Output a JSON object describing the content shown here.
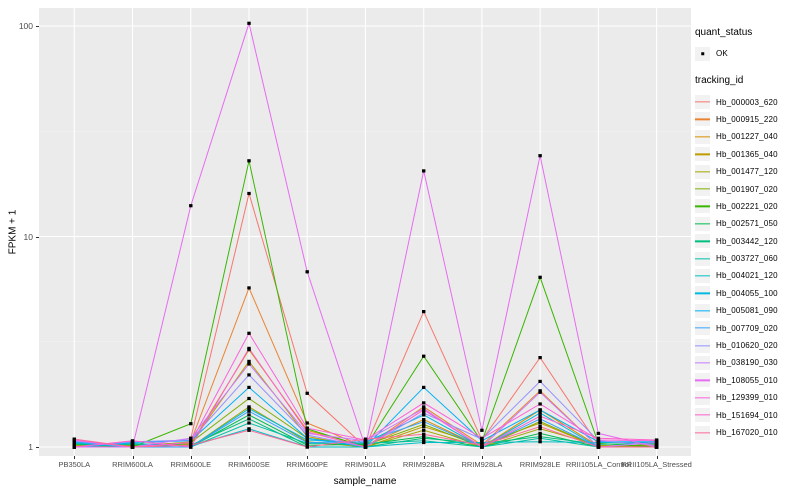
{
  "figure": {
    "background": "#FFFFFF",
    "panel_background": "#EBEBEB",
    "gridline_color": "#FFFFFF",
    "tick_text_color": "#4D4D4D",
    "point_color": "#000000"
  },
  "chart_data": {
    "type": "line",
    "title": "",
    "xlabel": "sample_name",
    "ylabel": "FPKM + 1",
    "y_scale": "log10",
    "ylim": [
      0.93,
      110
    ],
    "grid": "on",
    "y_ticks": [
      {
        "label": "1",
        "value": 1
      },
      {
        "label": "10",
        "value": 10
      },
      {
        "label": "100",
        "value": 100
      }
    ],
    "y_minor_ticks": [
      3.1623,
      31.623
    ],
    "categories": [
      "PB350LA",
      "RRIM600LA",
      "RRIM600LE",
      "RRIM600SE",
      "RRIM600PE",
      "RRIM901LA",
      "RRIM928BA",
      "RRIM928LA",
      "RRIM928LE",
      "RRII105LA_Control",
      "RRII105LA_Stressed"
    ],
    "legend": {
      "position": "right",
      "quant_status_title": "quant_status",
      "quant_status_items": [
        {
          "label": "OK",
          "symbol": "point-icon",
          "color": "#000000"
        }
      ],
      "tracking_id_title": "tracking_id"
    },
    "series": [
      {
        "name": "Hb_000003_620",
        "color": "#F8766D",
        "values": [
          1.0,
          1.0,
          1.1,
          16.0,
          1.8,
          1.0,
          4.4,
          1.08,
          2.66,
          1.02,
          1.0
        ]
      },
      {
        "name": "Hb_000915_220",
        "color": "#EA8331",
        "values": [
          1.0,
          1.0,
          1.06,
          5.7,
          1.3,
          1.0,
          1.55,
          1.02,
          1.85,
          1.0,
          1.01
        ]
      },
      {
        "name": "Hb_001227_040",
        "color": "#D89000",
        "values": [
          1.01,
          1.0,
          1.03,
          2.9,
          1.2,
          1.01,
          1.35,
          1.0,
          1.5,
          1.01,
          1.0
        ]
      },
      {
        "name": "Hb_001365_040",
        "color": "#C09B00",
        "values": [
          1.0,
          1.01,
          1.04,
          2.55,
          1.12,
          1.0,
          1.25,
          1.03,
          1.3,
          1.0,
          1.02
        ]
      },
      {
        "name": "Hb_001477_120",
        "color": "#A3A500",
        "values": [
          1.02,
          1.0,
          1.0,
          1.55,
          1.06,
          1.0,
          1.2,
          1.0,
          1.22,
          1.02,
          1.0
        ]
      },
      {
        "name": "Hb_001907_020",
        "color": "#7CAE00",
        "values": [
          1.0,
          1.02,
          1.05,
          1.7,
          1.1,
          1.02,
          1.28,
          1.0,
          1.32,
          1.0,
          1.03
        ]
      },
      {
        "name": "Hb_002221_020",
        "color": "#39B600",
        "values": [
          1.0,
          1.0,
          1.29,
          22.9,
          1.22,
          1.0,
          2.7,
          1.06,
          6.4,
          1.04,
          1.0
        ]
      },
      {
        "name": "Hb_002571_050",
        "color": "#00BB4E",
        "values": [
          1.03,
          1.0,
          1.0,
          1.42,
          1.02,
          1.03,
          1.12,
          1.0,
          1.16,
          1.0,
          1.0
        ]
      },
      {
        "name": "Hb_003442_120",
        "color": "#00BF7D",
        "values": [
          1.0,
          1.03,
          1.02,
          1.36,
          1.0,
          1.0,
          1.1,
          1.04,
          1.12,
          1.03,
          1.04
        ]
      },
      {
        "name": "Hb_003727_060",
        "color": "#00C1A3",
        "values": [
          1.04,
          1.0,
          1.0,
          1.3,
          1.04,
          1.04,
          1.07,
          1.0,
          1.1,
          1.0,
          1.0
        ]
      },
      {
        "name": "Hb_004021_120",
        "color": "#00BFC4",
        "values": [
          1.0,
          1.04,
          1.01,
          1.22,
          1.0,
          1.0,
          1.05,
          1.05,
          1.06,
          1.05,
          1.05
        ]
      },
      {
        "name": "Hb_004055_100",
        "color": "#00BAE0",
        "values": [
          1.05,
          1.0,
          1.0,
          1.52,
          1.08,
          1.05,
          1.42,
          1.0,
          1.45,
          1.0,
          1.0
        ]
      },
      {
        "name": "Hb_005081_090",
        "color": "#00B0F6",
        "values": [
          1.0,
          1.05,
          1.07,
          1.92,
          1.1,
          1.0,
          1.92,
          1.07,
          1.5,
          1.06,
          1.06
        ]
      },
      {
        "name": "Hb_007709_020",
        "color": "#35A2FF",
        "values": [
          1.06,
          1.0,
          1.0,
          1.48,
          1.05,
          1.06,
          1.32,
          1.0,
          1.36,
          1.0,
          1.0
        ]
      },
      {
        "name": "Hb_010620_020",
        "color": "#9590FF",
        "values": [
          1.0,
          1.06,
          1.08,
          2.2,
          1.14,
          1.0,
          1.45,
          1.09,
          2.05,
          1.07,
          1.02
        ]
      },
      {
        "name": "Hb_038190_030",
        "color": "#C77CFF",
        "values": [
          1.07,
          1.0,
          1.1,
          2.48,
          1.16,
          1.07,
          1.52,
          1.0,
          1.82,
          1.0,
          1.05
        ]
      },
      {
        "name": "Hb_108055_010",
        "color": "#E76BF3",
        "values": [
          1.0,
          1.0,
          14.0,
          103.0,
          6.8,
          1.0,
          20.5,
          1.2,
          24.2,
          1.16,
          1.0
        ]
      },
      {
        "name": "Hb_129399_010",
        "color": "#FA62DB",
        "values": [
          1.08,
          1.0,
          1.05,
          3.47,
          1.23,
          1.08,
          1.62,
          1.1,
          1.6,
          1.08,
          1.07
        ]
      },
      {
        "name": "Hb_151694_010",
        "color": "#FF61CC",
        "values": [
          1.0,
          1.07,
          1.0,
          2.94,
          1.18,
          1.0,
          1.5,
          1.0,
          1.4,
          1.1,
          1.08
        ]
      },
      {
        "name": "Hb_167020_010",
        "color": "#FF6A98",
        "values": [
          1.09,
          1.0,
          1.02,
          1.2,
          1.0,
          1.09,
          1.15,
          1.02,
          1.25,
          1.0,
          1.0
        ]
      }
    ]
  }
}
